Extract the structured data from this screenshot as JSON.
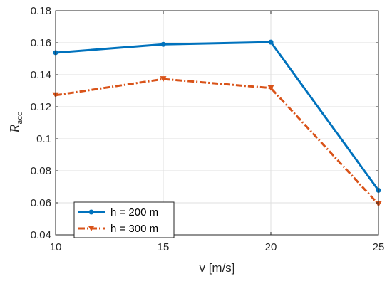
{
  "chart_data": {
    "type": "line",
    "xlabel": "v [m/s]",
    "ylabel_main": "R",
    "ylabel_sub": "acc",
    "x": [
      10,
      15,
      20,
      25
    ],
    "xlim": [
      10,
      25
    ],
    "ylim": [
      0.04,
      0.18
    ],
    "x_ticks": [
      "10",
      "15",
      "20",
      "25"
    ],
    "y_ticks": [
      "0.04",
      "0.06",
      "0.08",
      "0.1",
      "0.12",
      "0.14",
      "0.16",
      "0.18"
    ],
    "grid": true,
    "legend_position": "bottom-left",
    "series": [
      {
        "name": "h = 200 m",
        "values": [
          0.1538,
          0.159,
          0.1604,
          0.0678
        ],
        "color": "#0072BD",
        "line": "solid",
        "marker": "circle"
      },
      {
        "name": "h = 300 m",
        "values": [
          0.1272,
          0.1373,
          0.1317,
          0.0591
        ],
        "color": "#D95319",
        "line": "dash-dot",
        "marker": "triangle-down"
      }
    ]
  }
}
